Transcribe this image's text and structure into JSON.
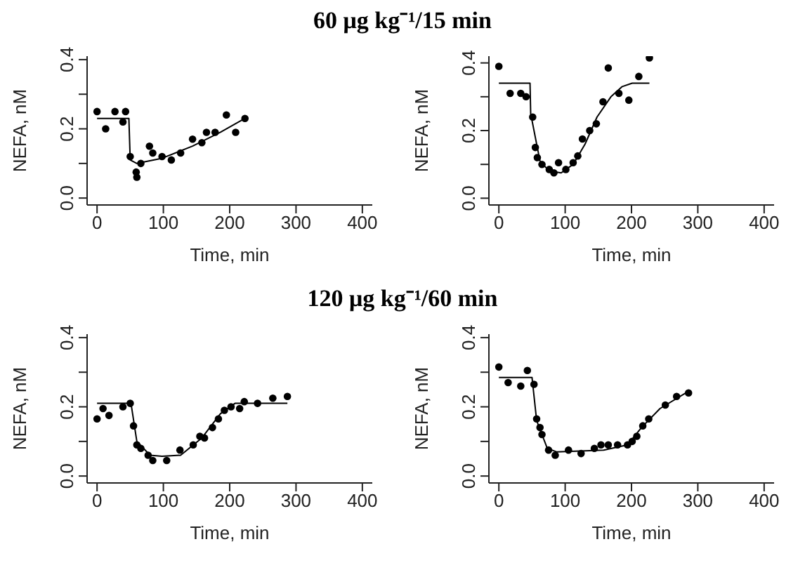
{
  "chart_data": [
    {
      "type": "scatter",
      "title": "60 μg kg⁻¹/15 min",
      "xlabel": "Time, min",
      "ylabel": "NEFA, nM",
      "xlim": [
        -15,
        415
      ],
      "ylim": [
        -0.02,
        0.41
      ],
      "xticks": [
        0,
        100,
        200,
        300,
        400
      ],
      "yticks": [
        {
          "value": 0,
          "label": "0.0"
        },
        {
          "value": 0.1,
          "label": null
        },
        {
          "value": 0.2,
          "label": "0.2"
        },
        {
          "value": 0.3,
          "label": null
        },
        {
          "value": 0.4,
          "label": "0.4"
        }
      ],
      "series": [
        {
          "marker": "circle",
          "color": "#000000",
          "x": [
            0,
            13,
            27,
            39,
            43,
            50,
            59,
            60,
            66,
            79,
            84,
            98,
            112,
            126,
            144,
            158,
            165,
            178,
            195,
            209,
            223
          ],
          "values": [
            0.25,
            0.2,
            0.25,
            0.22,
            0.25,
            0.12,
            0.075,
            0.06,
            0.1,
            0.15,
            0.13,
            0.12,
            0.11,
            0.13,
            0.17,
            0.16,
            0.19,
            0.19,
            0.24,
            0.19,
            0.23
          ]
        },
        {
          "type": "line",
          "color": "#000000",
          "x": [
            0,
            48,
            50,
            60,
            98,
            144,
            186,
            223
          ],
          "values": [
            0.23,
            0.23,
            0.11,
            0.1,
            0.115,
            0.15,
            0.19,
            0.23
          ]
        }
      ]
    },
    {
      "type": "scatter",
      "xlabel": "Time, min",
      "ylabel": "NEFA, nM",
      "xlim": [
        -15,
        415
      ],
      "ylim": [
        -0.02,
        0.42
      ],
      "xticks": [
        0,
        100,
        200,
        300,
        400
      ],
      "yticks": [
        {
          "value": 0,
          "label": "0.0"
        },
        {
          "value": 0.1,
          "label": null
        },
        {
          "value": 0.2,
          "label": "0.2"
        },
        {
          "value": 0.3,
          "label": null
        },
        {
          "value": 0.4,
          "label": "0.4"
        }
      ],
      "series": [
        {
          "marker": "circle",
          "color": "#000000",
          "x": [
            0,
            17,
            33,
            41,
            51,
            55,
            58,
            65,
            76,
            83,
            90,
            101,
            112,
            119,
            126,
            137,
            147,
            157,
            165,
            181,
            196,
            211,
            227
          ],
          "values": [
            0.39,
            0.31,
            0.31,
            0.3,
            0.24,
            0.15,
            0.12,
            0.1,
            0.085,
            0.075,
            0.105,
            0.085,
            0.105,
            0.125,
            0.175,
            0.2,
            0.22,
            0.285,
            0.385,
            0.31,
            0.29,
            0.36,
            0.415
          ]
        },
        {
          "type": "line",
          "color": "#000000",
          "x": [
            0,
            47,
            48,
            53,
            62,
            76,
            94,
            112,
            130,
            148,
            169,
            186,
            201,
            227
          ],
          "values": [
            0.34,
            0.34,
            0.25,
            0.2,
            0.11,
            0.08,
            0.075,
            0.1,
            0.16,
            0.24,
            0.3,
            0.33,
            0.34,
            0.34
          ]
        }
      ]
    },
    {
      "type": "scatter",
      "title": "120 μg kg⁻¹/60 min",
      "xlabel": "Time, min",
      "ylabel": "NEFA, nM",
      "xlim": [
        -15,
        415
      ],
      "ylim": [
        -0.02,
        0.41
      ],
      "xticks": [
        0,
        100,
        200,
        300,
        400
      ],
      "yticks": [
        {
          "value": 0,
          "label": "0.0"
        },
        {
          "value": 0.1,
          "label": null
        },
        {
          "value": 0.2,
          "label": "0.2"
        },
        {
          "value": 0.3,
          "label": null
        },
        {
          "value": 0.4,
          "label": "0.4"
        }
      ],
      "series": [
        {
          "marker": "circle",
          "color": "#000000",
          "x": [
            0,
            9,
            18,
            39,
            50,
            55,
            60,
            66,
            77,
            84,
            105,
            125,
            145,
            155,
            162,
            174,
            183,
            192,
            202,
            215,
            222,
            242,
            265,
            287
          ],
          "values": [
            0.165,
            0.195,
            0.175,
            0.2,
            0.21,
            0.145,
            0.09,
            0.08,
            0.06,
            0.045,
            0.045,
            0.075,
            0.09,
            0.115,
            0.11,
            0.14,
            0.165,
            0.19,
            0.2,
            0.195,
            0.215,
            0.21,
            0.225,
            0.23
          ]
        },
        {
          "type": "line",
          "color": "#000000",
          "x": [
            0,
            50,
            52,
            60,
            80,
            98,
            126,
            158,
            186,
            208,
            287
          ],
          "values": [
            0.21,
            0.21,
            0.2,
            0.1,
            0.06,
            0.057,
            0.06,
            0.11,
            0.18,
            0.21,
            0.21
          ]
        }
      ]
    },
    {
      "type": "scatter",
      "xlabel": "Time, min",
      "ylabel": "NEFA, nM",
      "xlim": [
        -15,
        415
      ],
      "ylim": [
        -0.02,
        0.41
      ],
      "xticks": [
        0,
        100,
        200,
        300,
        400
      ],
      "yticks": [
        {
          "value": 0,
          "label": "0.0"
        },
        {
          "value": 0.1,
          "label": null
        },
        {
          "value": 0.2,
          "label": "0.2"
        },
        {
          "value": 0.3,
          "label": null
        },
        {
          "value": 0.4,
          "label": "0.4"
        }
      ],
      "series": [
        {
          "marker": "circle",
          "color": "#000000",
          "x": [
            0,
            14,
            33,
            43,
            53,
            57,
            62,
            65,
            75,
            85,
            105,
            124,
            144,
            154,
            165,
            179,
            194,
            201,
            208,
            217,
            226,
            251,
            268,
            286
          ],
          "values": [
            0.315,
            0.27,
            0.26,
            0.305,
            0.265,
            0.165,
            0.14,
            0.12,
            0.075,
            0.06,
            0.075,
            0.065,
            0.08,
            0.09,
            0.09,
            0.09,
            0.09,
            0.1,
            0.115,
            0.145,
            0.165,
            0.205,
            0.23,
            0.24
          ]
        },
        {
          "type": "line",
          "color": "#000000",
          "x": [
            0,
            50,
            57,
            73,
            87,
            158,
            194,
            215,
            243,
            286
          ],
          "values": [
            0.285,
            0.285,
            0.16,
            0.08,
            0.07,
            0.075,
            0.09,
            0.14,
            0.195,
            0.245
          ]
        }
      ]
    }
  ]
}
